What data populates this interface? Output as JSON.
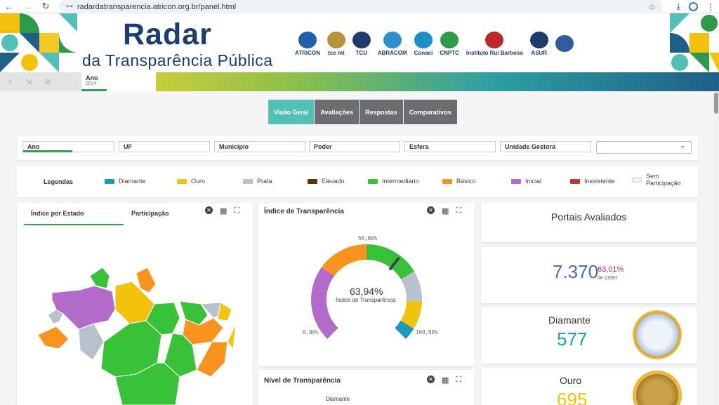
{
  "browser": {
    "url": "radardatransparencia.atricon.org.br/panel.html"
  },
  "header": {
    "title": "Radar",
    "subtitle": "da Transparência Pública",
    "partners": [
      {
        "name": "ATRICON",
        "color": "#1d5fa8"
      },
      {
        "name": "tce mt",
        "color": "#b8923b"
      },
      {
        "name": "TCU",
        "color": "#1f3c6e"
      },
      {
        "name": "ABRACOM",
        "color": "#2e8fcf"
      },
      {
        "name": "Conaci",
        "color": "#1b8fc9"
      },
      {
        "name": "CNPTC",
        "color": "#2e9a4c"
      },
      {
        "name": "Instituto Rui Barbosa",
        "color": "#c0272d"
      },
      {
        "name": "ASUR",
        "color": "#1f3c6e"
      },
      {
        "name": "",
        "color": "#345a9e"
      }
    ]
  },
  "toolbar": {
    "year_label": "Ano",
    "year_value": "2024"
  },
  "tabs": [
    {
      "label": "Visão Geral",
      "active": true
    },
    {
      "label": "Avaliações",
      "active": false
    },
    {
      "label": "Respostas",
      "active": false
    },
    {
      "label": "Comparativos",
      "active": false
    }
  ],
  "filters": [
    {
      "label": "Ano"
    },
    {
      "label": "UF"
    },
    {
      "label": "Município"
    },
    {
      "label": "Poder"
    },
    {
      "label": "Esfera"
    },
    {
      "label": "Unidade Gestora"
    }
  ],
  "legend": {
    "title": "Legendas",
    "items": [
      {
        "label": "Diamante",
        "color": "#1a9ab8"
      },
      {
        "label": "Ouro",
        "color": "#f4c20d"
      },
      {
        "label": "Prata",
        "color": "#b8c2cc"
      },
      {
        "label": "Elevado",
        "color": "#5a3214"
      },
      {
        "label": "Intermediário",
        "color": "#39c13a"
      },
      {
        "label": "Básico",
        "color": "#f7931e"
      },
      {
        "label": "Inicial",
        "color": "#b36bc9"
      },
      {
        "label": "Inexistente",
        "color": "#c0392b"
      },
      {
        "label": "Sem Participação",
        "color": "#f2f2f2"
      }
    ]
  },
  "map_panel": {
    "tab1": "Índice por Estado",
    "tab2": "Participação"
  },
  "gauge_panel": {
    "title": "Índice de Transparência",
    "value": "63,94%",
    "caption": "Índice de Transparência",
    "tick_min": "0,00%",
    "tick_mid": "50,00%",
    "tick_max": "100,00%",
    "percent": 63.94
  },
  "level_panel": {
    "title": "Nível de Transparência",
    "first_row": "Diamante"
  },
  "portals": {
    "title": "Portais Avaliados",
    "count": "7.370",
    "percent": "63,01%",
    "of_total": "de 11697"
  },
  "diamond": {
    "title": "Diamante",
    "count": "577"
  },
  "gold": {
    "title": "Ouro",
    "count": "695"
  }
}
